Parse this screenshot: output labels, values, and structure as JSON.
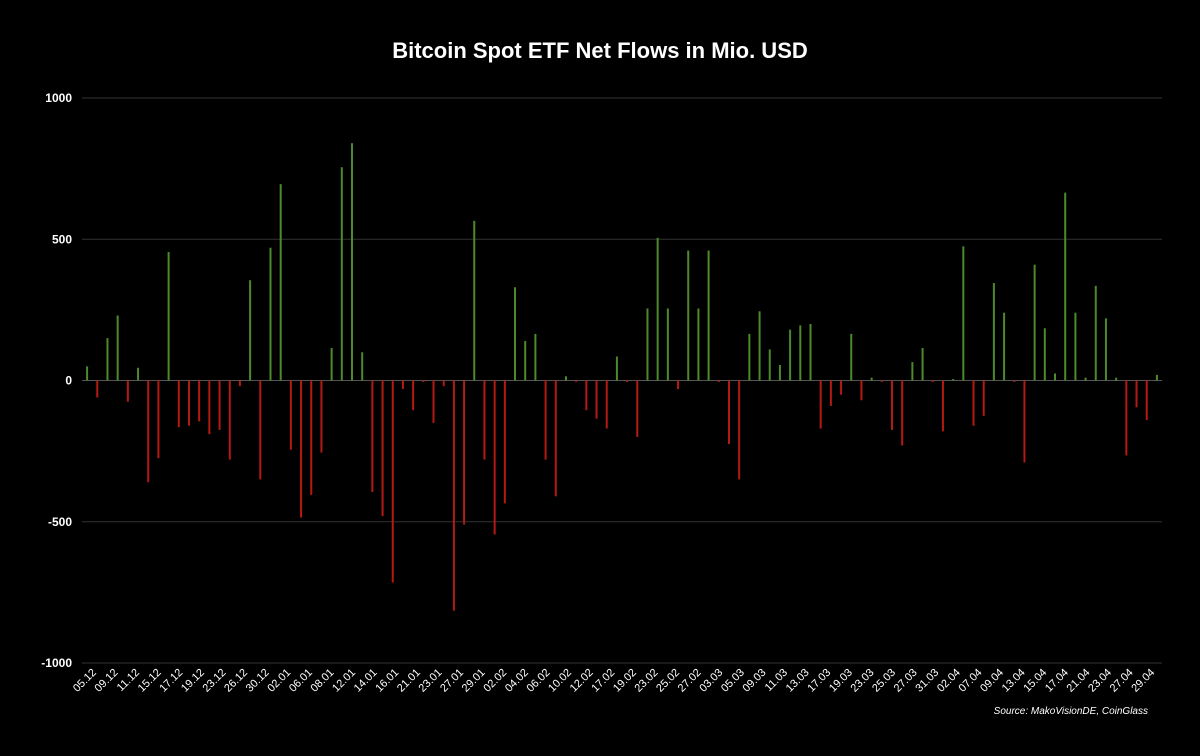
{
  "chart_data": {
    "type": "bar",
    "title": "Bitcoin Spot ETF Net Flows in Mio. USD",
    "source": "Source: MakoVisionDE, CoinGlass",
    "ylim": [
      -1000,
      1000
    ],
    "yticks": [
      1000,
      500,
      0,
      -500,
      -1000
    ],
    "grid": true,
    "colors": {
      "positive": "#4d8a2a",
      "negative": "#b51a12",
      "background": "#000000",
      "grid": "#333333",
      "text": "#ffffff"
    },
    "tick_labels": [
      "05.12",
      "09.12",
      "11.12",
      "15.12",
      "17.12",
      "19.12",
      "23.12",
      "26.12",
      "30.12",
      "02.01",
      "06.01",
      "08.01",
      "12.01",
      "14.01",
      "16.01",
      "21.01",
      "23.01",
      "27.01",
      "29.01",
      "02.02",
      "04.02",
      "06.02",
      "10.02",
      "12.02",
      "17.02",
      "19.02",
      "23.02",
      "25.02",
      "27.02",
      "03.03",
      "05.03",
      "09.03",
      "11.03",
      "13.03",
      "17.03",
      "19.03",
      "23.03",
      "25.03",
      "27.03",
      "31.03",
      "02.04",
      "07.04",
      "09.04",
      "13.04",
      "15.04",
      "17.04",
      "21.04",
      "23.04",
      "27.04",
      "29.04"
    ],
    "values": [
      50,
      -60,
      150,
      230,
      -75,
      45,
      -360,
      -275,
      455,
      -165,
      -160,
      -145,
      -190,
      -175,
      -280,
      -20,
      355,
      -350,
      470,
      695,
      -245,
      -485,
      -405,
      -255,
      115,
      755,
      840,
      100,
      -395,
      -480,
      -715,
      -30,
      -105,
      -5,
      -150,
      -20,
      -815,
      -510,
      565,
      -280,
      -545,
      -435,
      330,
      140,
      165,
      -280,
      -410,
      15,
      -5,
      -105,
      -135,
      -170,
      85,
      -5,
      -200,
      255,
      505,
      255,
      -30,
      460,
      255,
      460,
      -5,
      -225,
      -350,
      165,
      245,
      110,
      55,
      180,
      195,
      200,
      -170,
      -90,
      -50,
      165,
      -70,
      10,
      -5,
      -175,
      -230,
      65,
      115,
      -5,
      -180,
      5,
      475,
      -160,
      -125,
      345,
      240,
      -5,
      -290,
      410,
      185,
      25,
      665,
      240,
      10,
      335,
      220,
      10,
      -265,
      -95,
      -140,
      20
    ]
  }
}
